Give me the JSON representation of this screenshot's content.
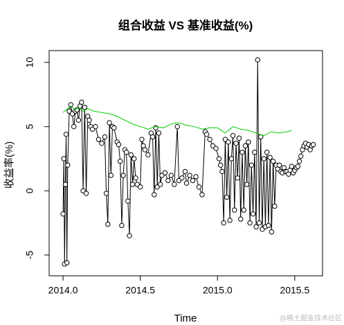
{
  "chart_data": {
    "type": "line",
    "title": "组合收益 VS 基准收益(%)",
    "x_label": "Time",
    "y_label": "收益率(%)",
    "watermark": "@稀土掘金技术社区",
    "xlim": [
      2013.91,
      2015.68
    ],
    "ylim": [
      -6.62,
      10.92
    ],
    "xticks": [
      {
        "value": 2014,
        "label": "2014.0"
      },
      2014.5,
      {
        "value": 2015,
        "label": "2015.0"
      },
      2015.5
    ],
    "yticks": [
      -5,
      0,
      5,
      10
    ],
    "series": [
      {
        "color": "#000000",
        "marker": "circle",
        "x": [
          2014.0,
          2014.005,
          2014.01,
          2014.015,
          2014.02,
          2014.025,
          2014.03,
          2014.04,
          2014.05,
          2014.06,
          2014.07,
          2014.08,
          2014.09,
          2014.1,
          2014.11,
          2014.12,
          2014.13,
          2014.14,
          2014.15,
          2014.16,
          2014.17,
          2014.18,
          2014.19,
          2014.21,
          2014.23,
          2014.25,
          2014.27,
          2014.28,
          2014.29,
          2014.3,
          2014.31,
          2014.32,
          2014.33,
          2014.35,
          2014.36,
          2014.37,
          2014.38,
          2014.39,
          2014.4,
          2014.41,
          2014.42,
          2014.43,
          2014.44,
          2014.45,
          2014.46,
          2014.47,
          2014.48,
          2014.5,
          2014.51,
          2014.52,
          2014.53,
          2014.55,
          2014.57,
          2014.58,
          2014.59,
          2014.6,
          2014.61,
          2014.62,
          2014.63,
          2014.64,
          2014.66,
          2014.68,
          2014.7,
          2014.72,
          2014.74,
          2014.75,
          2014.77,
          2014.79,
          2014.8,
          2014.82,
          2014.84,
          2014.86,
          2014.88,
          2014.9,
          2014.92,
          2014.93,
          2014.95,
          2014.97,
          2014.99,
          2015.01,
          2015.02,
          2015.03,
          2015.04,
          2015.05,
          2015.06,
          2015.07,
          2015.08,
          2015.09,
          2015.1,
          2015.11,
          2015.12,
          2015.13,
          2015.14,
          2015.15,
          2015.16,
          2015.17,
          2015.18,
          2015.19,
          2015.2,
          2015.21,
          2015.22,
          2015.23,
          2015.24,
          2015.25,
          2015.26,
          2015.27,
          2015.28,
          2015.29,
          2015.3,
          2015.31,
          2015.32,
          2015.33,
          2015.34,
          2015.35,
          2015.36,
          2015.37,
          2015.38,
          2015.39,
          2015.4,
          2015.41,
          2015.42,
          2015.43,
          2015.44,
          2015.45,
          2015.46,
          2015.47,
          2015.48,
          2015.49,
          2015.5,
          2015.51,
          2015.52,
          2015.53,
          2015.54,
          2015.55,
          2015.56,
          2015.57,
          2015.58,
          2015.59,
          2015.6,
          2015.61,
          2015.62
        ],
        "values": [
          -1.8,
          2.5,
          -5.7,
          0.5,
          4.4,
          -5.6,
          2.0,
          6.2,
          6.7,
          6.0,
          5.0,
          6.2,
          6.3,
          5.5,
          6.6,
          6.9,
          0.0,
          6.5,
          -0.2,
          5.8,
          5.5,
          5.0,
          4.8,
          5.0,
          4.0,
          3.7,
          4.2,
          -0.2,
          -2.6,
          5.3,
          1.2,
          5.0,
          4.9,
          3.8,
          3.6,
          2.3,
          -2.7,
          1.2,
          3.2,
          3.0,
          -0.8,
          -3.5,
          2.8,
          0.5,
          2.5,
          1.0,
          0.5,
          0.3,
          4.0,
          3.5,
          3.2,
          2.8,
          4.5,
          4.2,
          -0.3,
          4.9,
          0.3,
          4.5,
          0.5,
          1.2,
          1.4,
          0.8,
          1.2,
          0.5,
          5.0,
          0.8,
          1.0,
          1.5,
          0.6,
          1.2,
          0.8,
          1.1,
          0.3,
          -0.3,
          4.6,
          4.4,
          4.0,
          3.5,
          3.3,
          2.5,
          2.0,
          1.5,
          -2.5,
          4.0,
          -0.5,
          3.8,
          -2.3,
          2.5,
          4.3,
          -1.5,
          3.7,
          1.0,
          4.1,
          -2.2,
          3.0,
          -1.5,
          3.5,
          0.5,
          3.8,
          -2.5,
          2.0,
          -1.8,
          3.0,
          -2.8,
          10.2,
          -2.5,
          4.2,
          -3.0,
          2.5,
          -2.8,
          3.0,
          -2.7,
          2.6,
          -3.2,
          2.3,
          -1.2,
          2.0,
          1.7,
          2.0,
          1.5,
          1.4,
          1.8,
          1.5,
          1.5,
          1.3,
          1.6,
          1.9,
          1.4,
          1.6,
          1.8,
          1.9,
          2.3,
          2.7,
          3.2,
          3.5,
          3.7,
          3.4,
          3.6,
          3.2,
          3.5,
          3.6
        ]
      },
      {
        "color": "#00cc00",
        "x": [
          2014.0,
          2014.03,
          2014.05,
          2014.08,
          2014.1,
          2014.13,
          2014.16,
          2014.2,
          2014.25,
          2014.3,
          2014.35,
          2014.4,
          2014.45,
          2014.5,
          2014.55,
          2014.6,
          2014.65,
          2014.7,
          2014.75,
          2014.8,
          2014.85,
          2014.9,
          2014.95,
          2015.0,
          2015.05,
          2015.1,
          2015.15,
          2015.2,
          2015.25,
          2015.3,
          2015.35,
          2015.4,
          2015.45,
          2015.48
        ],
        "values": [
          6.1,
          6.4,
          6.6,
          6.3,
          6.5,
          6.2,
          6.4,
          6.2,
          6.1,
          6.0,
          5.8,
          5.5,
          5.2,
          5.0,
          4.8,
          5.0,
          4.9,
          5.2,
          5.3,
          5.1,
          5.0,
          4.8,
          4.9,
          4.9,
          4.5,
          5.0,
          4.8,
          4.7,
          4.5,
          4.3,
          4.6,
          4.5,
          4.6,
          4.7
        ]
      }
    ]
  }
}
